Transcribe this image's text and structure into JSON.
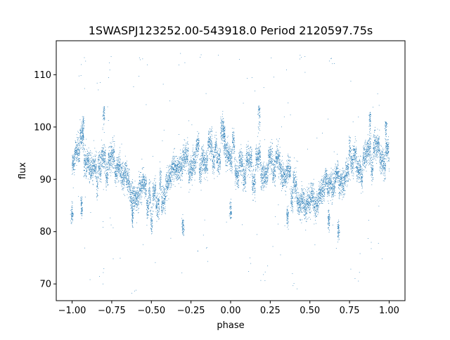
{
  "chart_data": {
    "type": "scatter",
    "title": "1SWASPJ123252.00-543918.0 Period 2120597.75s",
    "xlabel": "phase",
    "ylabel": "flux",
    "xlim": [
      -1.1,
      1.1
    ],
    "ylim": [
      66.8,
      116.5
    ],
    "xticks": [
      -1.0,
      -0.75,
      -0.5,
      -0.25,
      0.0,
      0.25,
      0.5,
      0.75,
      1.0
    ],
    "xtick_labels": [
      "−1.00",
      "−0.75",
      "−0.50",
      "−0.25",
      "0.00",
      "0.25",
      "0.50",
      "0.75",
      "1.00"
    ],
    "yticks": [
      70,
      80,
      90,
      100,
      110
    ],
    "ytick_labels": [
      "70",
      "80",
      "90",
      "100",
      "110"
    ],
    "grid": false,
    "marker_color": "#1f77b4",
    "series": [
      {
        "profile": {
          "phase": [
            -1.0,
            -0.95,
            -0.9,
            -0.85,
            -0.8,
            -0.75,
            -0.7,
            -0.65,
            -0.6,
            -0.55,
            -0.5,
            -0.45,
            -0.4,
            -0.35,
            -0.3,
            -0.25,
            -0.2,
            -0.15,
            -0.1,
            -0.05,
            0.0,
            0.05,
            0.1,
            0.15,
            0.2,
            0.25,
            0.3,
            0.35,
            0.4,
            0.45,
            0.5,
            0.55,
            0.6,
            0.65,
            0.7,
            0.75,
            0.8,
            0.85,
            0.9,
            0.95,
            1.0
          ],
          "flux": [
            91,
            95,
            94,
            92,
            91,
            92,
            93,
            91,
            89,
            87,
            86,
            87,
            89,
            91,
            92,
            93,
            94,
            95,
            95,
            96,
            96,
            94,
            93,
            92,
            92,
            93,
            93,
            91,
            89,
            87,
            86,
            87,
            89,
            91,
            92,
            93,
            94,
            95,
            95,
            96,
            96
          ],
          "spread": [
            3,
            4,
            4,
            4,
            4,
            4,
            4,
            4,
            4,
            4,
            4,
            4,
            4,
            4,
            4,
            4,
            4,
            4,
            4,
            4,
            4,
            4,
            4,
            4,
            4,
            4,
            4,
            4,
            4,
            4,
            4,
            4,
            4,
            4,
            4,
            4,
            4,
            4,
            4,
            4,
            4
          ]
        },
        "features": {
          "low_clumps": [
            [
              -1.0,
              83.5
            ],
            [
              -0.94,
              85
            ],
            [
              -0.62,
              83
            ],
            [
              -0.3,
              81
            ],
            [
              0.0,
              84
            ],
            [
              0.36,
              83
            ],
            [
              0.62,
              82
            ],
            [
              0.68,
              80.5
            ]
          ],
          "high_spikes": [
            [
              -0.93,
              102
            ],
            [
              -0.8,
              104
            ],
            [
              0.18,
              104
            ],
            [
              -0.04,
              100
            ],
            [
              0.98,
              101
            ],
            [
              0.88,
              103
            ]
          ],
          "outliers": [
            [
              -0.95,
              110
            ],
            [
              -0.83,
              108
            ],
            [
              -0.55,
              113
            ],
            [
              -0.3,
              112
            ],
            [
              0.45,
              113
            ],
            [
              0.63,
              112
            ],
            [
              -0.8,
              72
            ],
            [
              -0.15,
              76
            ],
            [
              0.88,
              77
            ],
            [
              0.2,
              71
            ],
            [
              -0.6,
              70
            ],
            [
              0.4,
              70
            ]
          ]
        },
        "point_count": 9000
      }
    ]
  }
}
